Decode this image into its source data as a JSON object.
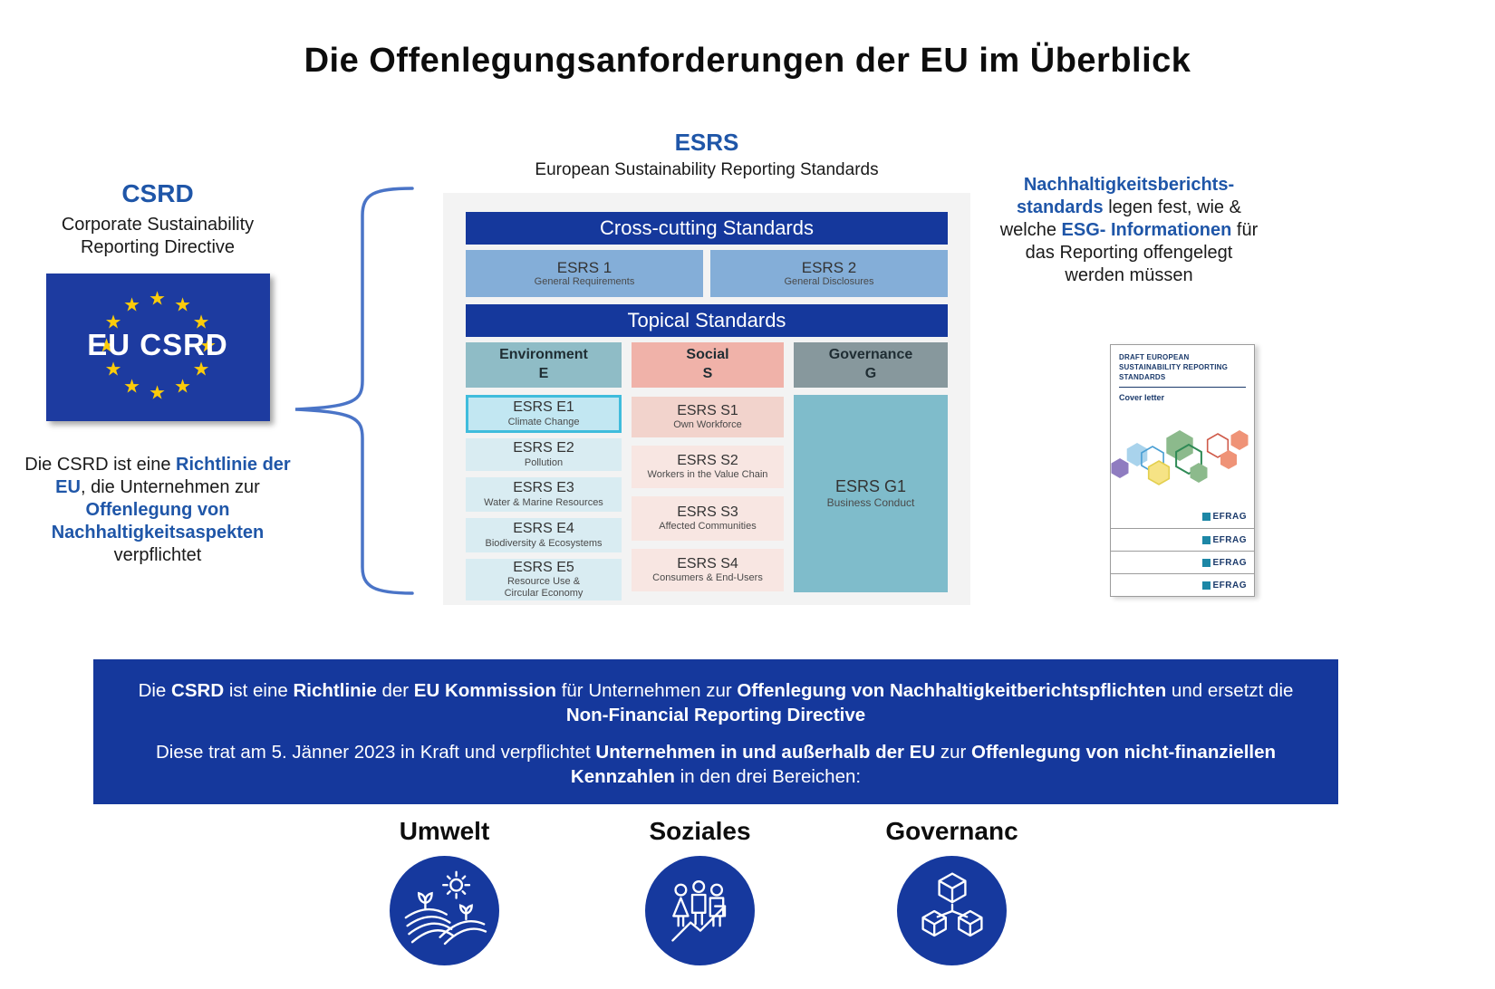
{
  "colors": {
    "accent": "#1f56a8",
    "banner_bg": "#15389c",
    "header_bar_bg": "#15389c",
    "flag_bg": "#1d3ba0",
    "star_yellow": "#fccc0a",
    "esrs_general_bg": "#84aed8",
    "env_header_bg": "#8fbcc6",
    "social_header_bg": "#f0b2a9",
    "gov_header_bg": "#87989d",
    "env_cell_bg": "#d9ecf2",
    "env_highlight_bg": "#c2e7f2",
    "env_highlight_border": "#3fbcdc",
    "social_cell_bg": "#f8e6e2",
    "social_first_cell_bg": "#f2d3cc",
    "gov_cell_bg": "#7fbccb",
    "panel_bg": "#f3f3f3",
    "brace": "#4a74c7",
    "pillar_circle": "#16399e"
  },
  "title": "Die Offenlegungsanforderungen der EU im Überblick",
  "csrd": {
    "heading": "CSRD",
    "subheading": "Corporate Sustainability Reporting Directive",
    "flag_label": "EU CSRD",
    "description": [
      {
        "t": "Die CSRD ist eine "
      },
      {
        "t": "Richtlinie der EU",
        "b": true,
        "c": "accent"
      },
      {
        "t": ", die Unternehmen zur "
      },
      {
        "t": "Offenlegung von Nachhaltigkeitsaspekten",
        "b": true,
        "c": "accent"
      },
      {
        "t": " verpflichtet"
      }
    ]
  },
  "esrs": {
    "heading": "ESRS",
    "subheading": "European Sustainability Reporting Standards",
    "cross_cutting_header": "Cross-cutting Standards",
    "general": [
      {
        "name": "ESRS 1",
        "desc": "General Requirements"
      },
      {
        "name": "ESRS 2",
        "desc": "General Disclosures"
      }
    ],
    "topical_header": "Topical Standards",
    "columns": [
      {
        "label": "Environment",
        "letter": "E",
        "items": [
          {
            "name": "ESRS E1",
            "desc": "Climate Change",
            "highlighted": true
          },
          {
            "name": "ESRS E2",
            "desc": "Pollution"
          },
          {
            "name": "ESRS E3",
            "desc": "Water & Marine Resources"
          },
          {
            "name": "ESRS E4",
            "desc": "Biodiversity & Ecosystems"
          },
          {
            "name": "ESRS E5",
            "desc": "Resource Use & Circular Economy"
          }
        ]
      },
      {
        "label": "Social",
        "letter": "S",
        "items": [
          {
            "name": "ESRS S1",
            "desc": "Own Workforce"
          },
          {
            "name": "ESRS S2",
            "desc": "Workers in the Value Chain"
          },
          {
            "name": "ESRS S3",
            "desc": "Affected Communities"
          },
          {
            "name": "ESRS S4",
            "desc": "Consumers & End-Users"
          }
        ]
      },
      {
        "label": "Governance",
        "letter": "G",
        "items": [
          {
            "name": "ESRS G1",
            "desc": "Business Conduct"
          }
        ]
      }
    ]
  },
  "right_note": {
    "segments": [
      {
        "t": "Nachhaltigkeitsberichts-standards",
        "b": true,
        "c": "accent"
      },
      {
        "t": " legen fest, wie & welche "
      },
      {
        "t": "ESG- Informationen",
        "b": true,
        "c": "accent"
      },
      {
        "t": " für das Reporting offengelegt werden müssen"
      }
    ]
  },
  "efrag_doc": {
    "title": "DRAFT EUROPEAN SUSTAINABILITY REPORTING STANDARDS",
    "subtitle": "Cover letter",
    "logo": "EFRAG",
    "stacked_pages": 3
  },
  "banner": {
    "paragraph_1": [
      {
        "t": "Die "
      },
      {
        "t": "CSRD",
        "b": true
      },
      {
        "t": " ist eine "
      },
      {
        "t": "Richtlinie",
        "b": true
      },
      {
        "t": " der "
      },
      {
        "t": "EU Kommission",
        "b": true
      },
      {
        "t": " für Unternehmen zur "
      },
      {
        "t": "Offenlegung von Nachhaltigkeitberichtspflichten",
        "b": true
      },
      {
        "t": " und ersetzt die "
      },
      {
        "t": "Non-Financial Reporting Directive",
        "b": true
      }
    ],
    "paragraph_2": [
      {
        "t": "Diese trat am 5. Jänner 2023 in Kraft und verpflichtet "
      },
      {
        "t": "Unternehmen in und außerhalb der EU",
        "b": true
      },
      {
        "t": " zur "
      },
      {
        "t": "Offenlegung von nicht-finanziellen Kennzahlen",
        "b": true
      },
      {
        "t": " in den drei Bereichen:"
      }
    ]
  },
  "pillars": [
    {
      "label": "Umwelt",
      "icon": "field-sun-icon"
    },
    {
      "label": "Soziales",
      "icon": "people-growth-icon"
    },
    {
      "label": "Governanc",
      "icon": "cubes-network-icon"
    }
  ]
}
